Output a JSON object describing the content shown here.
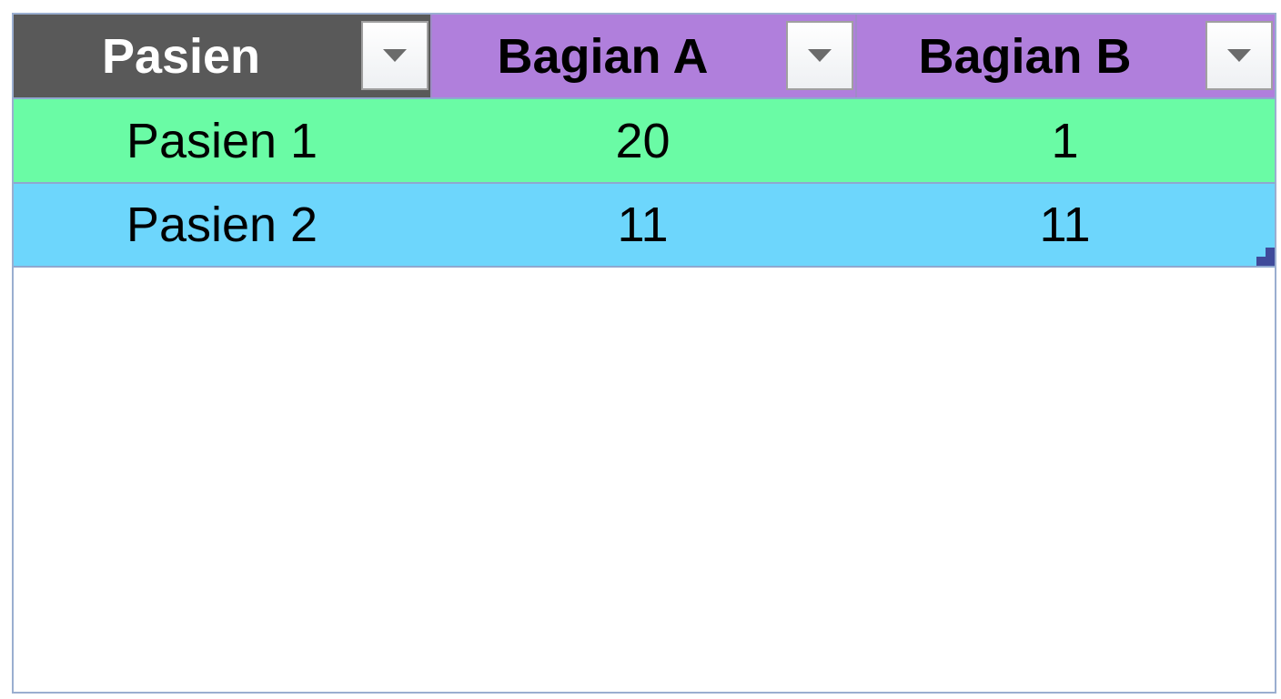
{
  "table": {
    "headers": [
      {
        "label": "Pasien",
        "color": "#595959"
      },
      {
        "label": "Bagian A",
        "color": "#b07fdc"
      },
      {
        "label": "Bagian B",
        "color": "#b07fdc"
      }
    ],
    "rows": [
      {
        "cells": [
          "Pasien 1",
          "20",
          "1"
        ],
        "color": "#6afba5"
      },
      {
        "cells": [
          "Pasien 2",
          "11",
          "11"
        ],
        "color": "#6dd6fc"
      }
    ],
    "filter_icon": "dropdown-arrow-icon"
  }
}
